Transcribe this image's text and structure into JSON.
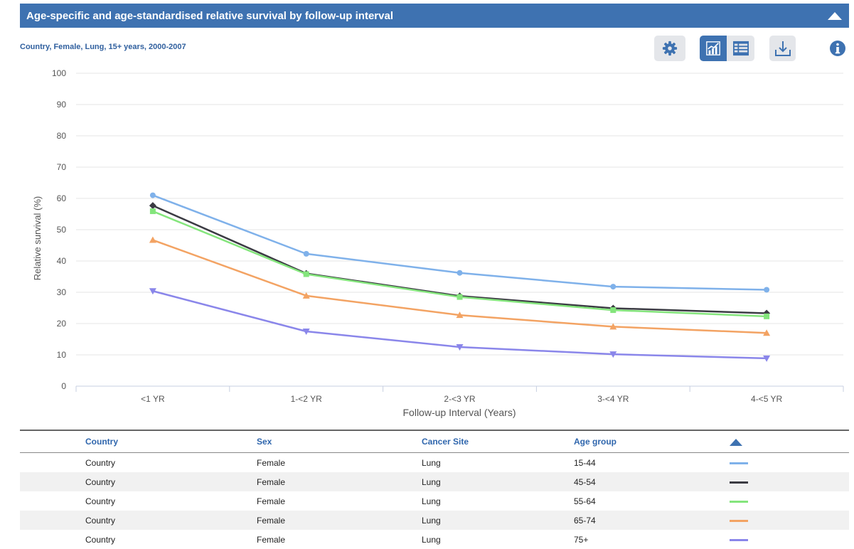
{
  "header": {
    "title": "Age-specific and age-standardised relative survival by follow-up interval"
  },
  "subtitle": "Country, Female, Lung, 15+ years, 2000-2007",
  "toolbar": {
    "settings_icon": "gear-icon",
    "chart_view_icon": "line-chart-icon",
    "table_view_icon": "table-icon",
    "download_icon": "download-icon",
    "info_icon": "info-icon"
  },
  "colors": {
    "header_bg": "#3e72b1",
    "accent": "#2f66ad"
  },
  "chart_data": {
    "type": "line",
    "categories": [
      "<1 YR",
      "1-<2 YR",
      "2-<3 YR",
      "3-<4 YR",
      "4-<5 YR"
    ],
    "xlabel": "Follow-up Interval (Years)",
    "ylabel": "Relative survival (%)",
    "ylim": [
      0,
      100
    ],
    "yticks": [
      0,
      10,
      20,
      30,
      40,
      50,
      60,
      70,
      80,
      90,
      100
    ],
    "grid": true,
    "series": [
      {
        "name": "15-44",
        "color": "#7fb1ea",
        "marker": "circle",
        "values": [
          61,
          42.3,
          36.2,
          31.8,
          30.8
        ]
      },
      {
        "name": "45-54",
        "color": "#3b3b43",
        "marker": "diamond",
        "values": [
          57.7,
          36,
          28.8,
          24.9,
          23.3
        ]
      },
      {
        "name": "55-64",
        "color": "#84e57c",
        "marker": "square",
        "values": [
          55.9,
          35.8,
          28.5,
          24.3,
          22.3
        ]
      },
      {
        "name": "65-74",
        "color": "#f3a363",
        "marker": "triangle",
        "values": [
          46.7,
          28.9,
          22.7,
          19,
          17
        ]
      },
      {
        "name": "75+",
        "color": "#8a86ea",
        "marker": "triangle-down",
        "values": [
          30.4,
          17.5,
          12.5,
          10.2,
          8.9
        ]
      }
    ]
  },
  "legend_table": {
    "columns": [
      "Country",
      "Sex",
      "Cancer Site",
      "Age group"
    ],
    "sort_icon": "triangle-up-icon",
    "rows": [
      {
        "country": "Country",
        "sex": "Female",
        "site": "Lung",
        "age": "15-44",
        "color": "#7fb1ea"
      },
      {
        "country": "Country",
        "sex": "Female",
        "site": "Lung",
        "age": "45-54",
        "color": "#3b3b43"
      },
      {
        "country": "Country",
        "sex": "Female",
        "site": "Lung",
        "age": "55-64",
        "color": "#84e57c"
      },
      {
        "country": "Country",
        "sex": "Female",
        "site": "Lung",
        "age": "65-74",
        "color": "#f3a363"
      },
      {
        "country": "Country",
        "sex": "Female",
        "site": "Lung",
        "age": "75+",
        "color": "#8a86ea"
      }
    ]
  }
}
